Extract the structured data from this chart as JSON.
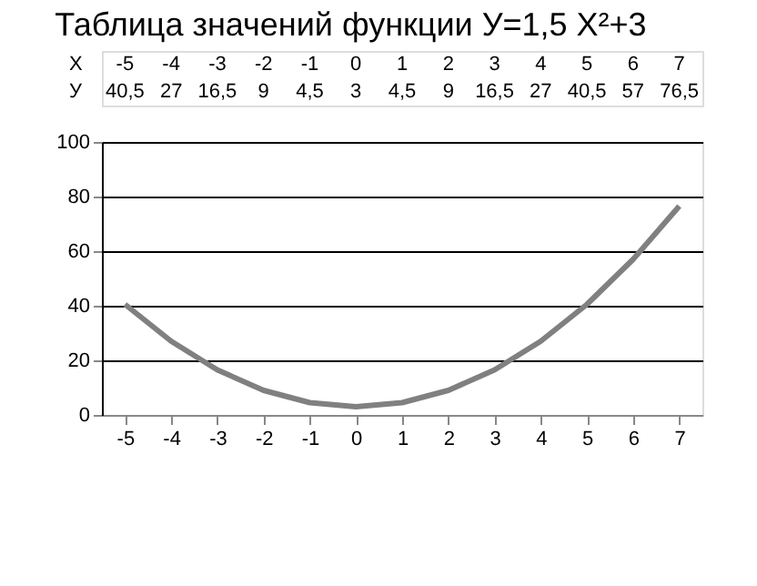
{
  "chart_data": {
    "type": "line",
    "title": "Таблица значений функции У=1,5 X²+3",
    "categories": [
      "-5",
      "-4",
      "-3",
      "-2",
      "-1",
      "0",
      "1",
      "2",
      "3",
      "4",
      "5",
      "6",
      "7"
    ],
    "series": [
      {
        "color": "#808080",
        "values": [
          40.5,
          27,
          16.5,
          9,
          4.5,
          3,
          4.5,
          9,
          16.5,
          27,
          40.5,
          57,
          76.5
        ]
      }
    ],
    "value_labels": [
      "40,5",
      "27",
      "16,5",
      "9",
      "4,5",
      "3",
      "4,5",
      "9",
      "16,5",
      "27",
      "40,5",
      "57",
      "76,5"
    ],
    "annotations": [
      "X",
      "У"
    ],
    "ylim": [
      0,
      100
    ],
    "yticks": [
      0,
      20,
      40,
      60,
      80,
      100
    ],
    "grid": "y",
    "marker": "none",
    "line_style": "solid"
  }
}
